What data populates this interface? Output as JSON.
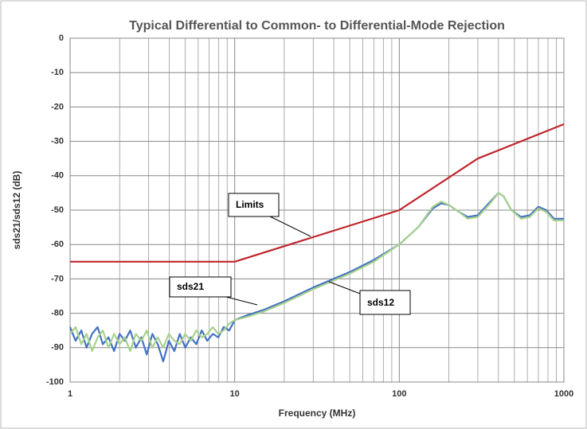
{
  "chart_data": {
    "type": "line",
    "title": "Typical Differential to Common- to Differential-Mode Rejection",
    "x_label": "Frequency (MHz)",
    "y_label": "sds21/sds12 (dB)",
    "log_x": true,
    "grid": true,
    "xlim": [
      1,
      1000
    ],
    "xticks": [
      1,
      10,
      100,
      1000
    ],
    "xminor": [
      2,
      3,
      4,
      5,
      6,
      7,
      8,
      9,
      20,
      30,
      40,
      50,
      60,
      70,
      80,
      90,
      200,
      300,
      400,
      500,
      600,
      700,
      800,
      900
    ],
    "ylim": [
      -100,
      0
    ],
    "yticks": [
      -100,
      -90,
      -80,
      -70,
      -60,
      -50,
      -40,
      -30,
      -20,
      -10,
      0
    ],
    "x": [
      1.0,
      1.08,
      1.17,
      1.26,
      1.36,
      1.47,
      1.58,
      1.71,
      1.85,
      2.0,
      2.15,
      2.32,
      2.51,
      2.71,
      2.92,
      3.16,
      3.41,
      3.68,
      3.98,
      4.3,
      4.64,
      5.01,
      5.41,
      5.84,
      6.31,
      6.81,
      7.36,
      7.94,
      8.58,
      9.26,
      10,
      12,
      15,
      20,
      30,
      50,
      70,
      100,
      130,
      160,
      180,
      200,
      230,
      260,
      300,
      350,
      400,
      430,
      480,
      550,
      620,
      700,
      780,
      870,
      1000
    ],
    "series": [
      {
        "name": "Limits",
        "color": "#c0262d",
        "x": [
          1,
          10,
          100,
          300,
          1000
        ],
        "values": [
          -65,
          -65,
          -50,
          -35,
          -25
        ]
      },
      {
        "name": "sds21",
        "color": "#4472c4",
        "values": [
          -84,
          -88,
          -85,
          -90,
          -86,
          -84,
          -89,
          -87,
          -91,
          -86,
          -88,
          -85,
          -90,
          -87,
          -92,
          -86,
          -89,
          -94,
          -88,
          -91,
          -86,
          -90,
          -87,
          -89,
          -85,
          -88,
          -86,
          -87,
          -84,
          -85,
          -82,
          -80.5,
          -79,
          -76.5,
          -72.5,
          -68,
          -64.5,
          -60,
          -55,
          -49.5,
          -48,
          -48.5,
          -50.5,
          -52,
          -51.5,
          -48,
          -45,
          -46,
          -50,
          -52,
          -51.5,
          -49,
          -50,
          -52.5,
          -52.5
        ]
      },
      {
        "name": "sds12",
        "color": "#a9d18e",
        "values": [
          -86,
          -84,
          -89,
          -86,
          -91,
          -87,
          -85,
          -90,
          -86,
          -89,
          -87,
          -91,
          -86,
          -88,
          -85,
          -90,
          -87,
          -90,
          -86,
          -88,
          -89,
          -86,
          -88,
          -85,
          -87,
          -86,
          -84,
          -86,
          -85,
          -83,
          -82,
          -81,
          -79.5,
          -77,
          -73,
          -68.5,
          -65,
          -60,
          -55,
          -49,
          -47.5,
          -48.5,
          -50.5,
          -52.5,
          -52,
          -48.5,
          -45,
          -46,
          -50,
          -52.5,
          -52,
          -49.5,
          -50.5,
          -53,
          -53
        ]
      }
    ],
    "annotations": [
      "Limits",
      "sds21",
      "sds12"
    ]
  }
}
